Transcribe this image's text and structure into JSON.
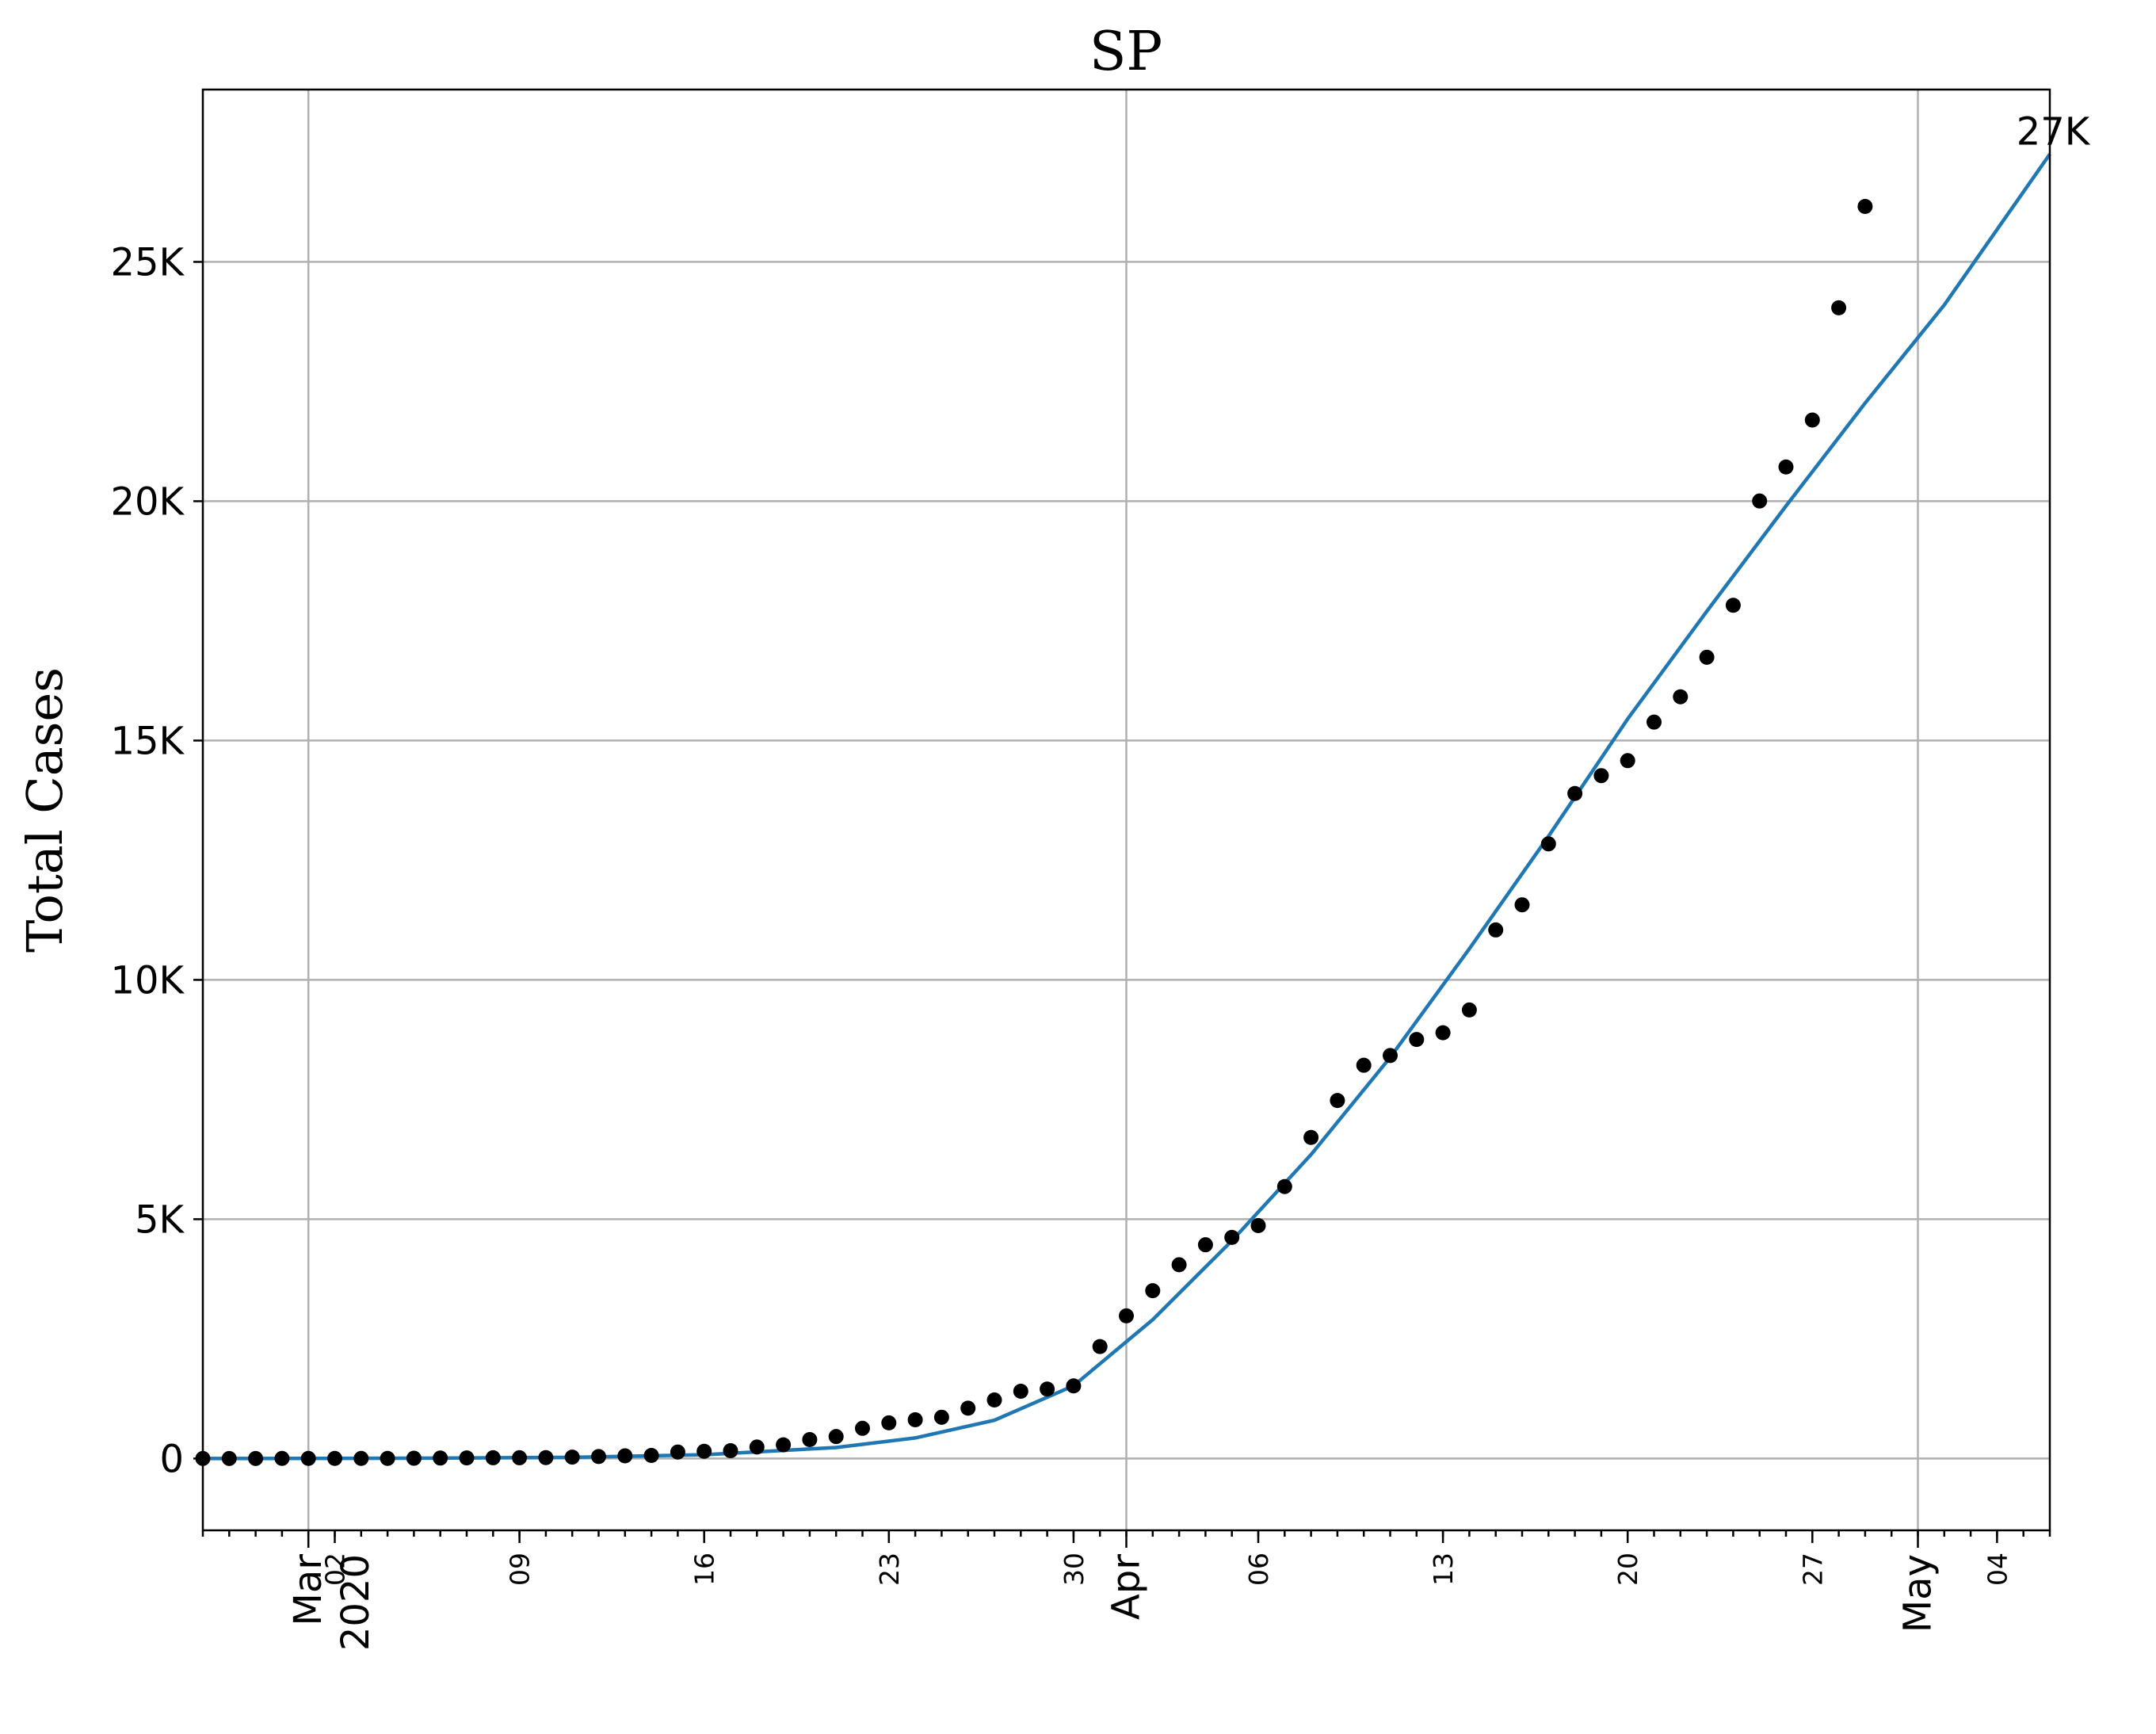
{
  "chart_data": {
    "type": "scatter",
    "title": "SP",
    "ylabel": "Total Cases",
    "xlabel": "",
    "x_start": "2020-02-26",
    "x_end": "2020-05-06",
    "ylim": [
      -1500,
      28600
    ],
    "grid": true,
    "yticks": [
      {
        "value": 0,
        "label": "0"
      },
      {
        "value": 5000,
        "label": "5K"
      },
      {
        "value": 10000,
        "label": "10K"
      },
      {
        "value": 15000,
        "label": "15K"
      },
      {
        "value": 20000,
        "label": "20K"
      },
      {
        "value": 25000,
        "label": "25K"
      }
    ],
    "x_minor_labels": [
      {
        "date": "2020-03-02",
        "label": "02"
      },
      {
        "date": "2020-03-09",
        "label": "09"
      },
      {
        "date": "2020-03-16",
        "label": "16"
      },
      {
        "date": "2020-03-23",
        "label": "23"
      },
      {
        "date": "2020-03-30",
        "label": "30"
      },
      {
        "date": "2020-04-06",
        "label": "06"
      },
      {
        "date": "2020-04-13",
        "label": "13"
      },
      {
        "date": "2020-04-20",
        "label": "20"
      },
      {
        "date": "2020-04-27",
        "label": "27"
      },
      {
        "date": "2020-05-04",
        "label": "04"
      }
    ],
    "x_major_labels": [
      {
        "date": "2020-03-01",
        "label": "Mar\n2020"
      },
      {
        "date": "2020-04-01",
        "label": "Apr"
      },
      {
        "date": "2020-05-01",
        "label": "May"
      }
    ],
    "x_gridlines": [
      "2020-03-01",
      "2020-04-01",
      "2020-05-01"
    ],
    "series": [
      {
        "kind": "points",
        "color": "#000000",
        "points": [
          [
            "2020-02-26",
            1
          ],
          [
            "2020-02-27",
            1
          ],
          [
            "2020-02-28",
            1
          ],
          [
            "2020-02-29",
            2
          ],
          [
            "2020-03-01",
            2
          ],
          [
            "2020-03-02",
            2
          ],
          [
            "2020-03-03",
            2
          ],
          [
            "2020-03-04",
            3
          ],
          [
            "2020-03-05",
            6
          ],
          [
            "2020-03-06",
            10
          ],
          [
            "2020-03-07",
            13
          ],
          [
            "2020-03-08",
            16
          ],
          [
            "2020-03-09",
            16
          ],
          [
            "2020-03-10",
            19
          ],
          [
            "2020-03-11",
            30
          ],
          [
            "2020-03-12",
            42
          ],
          [
            "2020-03-13",
            56
          ],
          [
            "2020-03-14",
            65
          ],
          [
            "2020-03-15",
            136
          ],
          [
            "2020-03-16",
            152
          ],
          [
            "2020-03-17",
            164
          ],
          [
            "2020-03-18",
            240
          ],
          [
            "2020-03-19",
            286
          ],
          [
            "2020-03-20",
            396
          ],
          [
            "2020-03-21",
            459
          ],
          [
            "2020-03-22",
            631
          ],
          [
            "2020-03-23",
            745
          ],
          [
            "2020-03-24",
            810
          ],
          [
            "2020-03-25",
            862
          ],
          [
            "2020-03-26",
            1052
          ],
          [
            "2020-03-27",
            1223
          ],
          [
            "2020-03-28",
            1406
          ],
          [
            "2020-03-29",
            1451
          ],
          [
            "2020-03-30",
            1517
          ],
          [
            "2020-03-31",
            2339
          ],
          [
            "2020-04-01",
            2981
          ],
          [
            "2020-04-02",
            3506
          ],
          [
            "2020-04-03",
            4048
          ],
          [
            "2020-04-04",
            4466
          ],
          [
            "2020-04-05",
            4620
          ],
          [
            "2020-04-06",
            4866
          ],
          [
            "2020-04-07",
            5682
          ],
          [
            "2020-04-08",
            6708
          ],
          [
            "2020-04-09",
            7480
          ],
          [
            "2020-04-10",
            8216
          ],
          [
            "2020-04-11",
            8419
          ],
          [
            "2020-04-12",
            8755
          ],
          [
            "2020-04-13",
            8895
          ],
          [
            "2020-04-14",
            9371
          ],
          [
            "2020-04-15",
            11043
          ],
          [
            "2020-04-16",
            11568
          ],
          [
            "2020-04-17",
            12841
          ],
          [
            "2020-04-18",
            13894
          ],
          [
            "2020-04-19",
            14267
          ],
          [
            "2020-04-20",
            14580
          ],
          [
            "2020-04-21",
            15385
          ],
          [
            "2020-04-22",
            15914
          ],
          [
            "2020-04-23",
            16740
          ],
          [
            "2020-04-24",
            17826
          ],
          [
            "2020-04-25",
            20004
          ],
          [
            "2020-04-26",
            20715
          ],
          [
            "2020-04-27",
            21696
          ],
          [
            "2020-04-28",
            24041
          ],
          [
            "2020-04-29",
            26158
          ]
        ]
      },
      {
        "kind": "line",
        "color": "#1f77b4",
        "points": [
          [
            "2020-02-26",
            0
          ],
          [
            "2020-03-06",
            8
          ],
          [
            "2020-03-11",
            25
          ],
          [
            "2020-03-16",
            80
          ],
          [
            "2020-03-21",
            230
          ],
          [
            "2020-03-24",
            430
          ],
          [
            "2020-03-27",
            800
          ],
          [
            "2020-03-30",
            1520
          ],
          [
            "2020-04-02",
            2900
          ],
          [
            "2020-04-05",
            4550
          ],
          [
            "2020-04-08",
            6350
          ],
          [
            "2020-04-11",
            8380
          ],
          [
            "2020-04-14",
            10650
          ],
          [
            "2020-04-17",
            13000
          ],
          [
            "2020-04-20",
            15450
          ],
          [
            "2020-04-23",
            17700
          ],
          [
            "2020-04-26",
            19900
          ],
          [
            "2020-04-29",
            22050
          ],
          [
            "2020-05-02",
            24100
          ],
          [
            "2020-05-06",
            27250
          ]
        ]
      }
    ],
    "annotations": [
      {
        "text": "27K",
        "date": "2020-05-06",
        "value": 27250
      }
    ]
  }
}
